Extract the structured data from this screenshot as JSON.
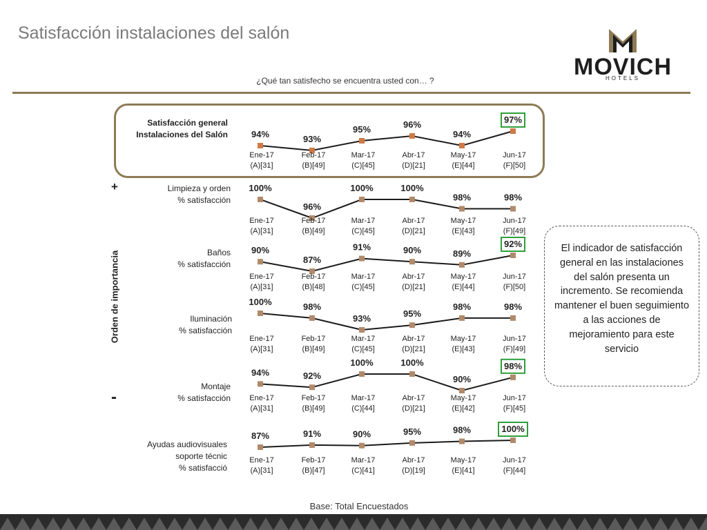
{
  "title": "Satisfacción instalaciones del salón",
  "question": "¿Qué tan satisfecho se encuentra usted con… ?",
  "logo": {
    "name": "MOVICH",
    "sub": "HOTELS",
    "colors": [
      "#8d7b55",
      "#1e1e1e"
    ]
  },
  "importance_axis": {
    "label": "Orden de importancia",
    "top": "+",
    "bottom": "-"
  },
  "callout": "El indicador de satisfacción general en las instalaciones del salón presenta un incremento. Se recomienda mantener el buen seguimiento a las acciones de mejoramiento para este servicio",
  "footer": "Base: Total Encuestados",
  "colors": {
    "line": "#1a1a1a",
    "marker_general": "#cf7a46",
    "marker": "#b08a6a",
    "highlight": "#2e9e3a",
    "frame": "#8d7b55"
  },
  "chart_data": [
    {
      "type": "line",
      "label_lines": [
        "Satisfacción general",
        "Instalaciones del Salón"
      ],
      "categories": [
        "Ene-17",
        "Feb-17",
        "Mar-17",
        "Abr-17",
        "May-17",
        "Jun-17"
      ],
      "bases": [
        "(A)[31]",
        "(B)[49]",
        "(C)[45]",
        "(D)[21]",
        "(E)[44]",
        "(F)[50]"
      ],
      "values": [
        94,
        93,
        95,
        96,
        94,
        97
      ],
      "value_labels": [
        "94%",
        "93%",
        "95%",
        "96%",
        "94%",
        "97%"
      ],
      "highlighted": [
        5
      ]
    },
    {
      "type": "line",
      "label_lines": [
        "Limpieza y orden",
        "% satisfacción"
      ],
      "categories": [
        "Ene-17",
        "Feb-17",
        "Mar-17",
        "Abr-17",
        "May-17",
        "Jun-17"
      ],
      "bases": [
        "(A)[31]",
        "(B)[49]",
        "(C)[45]",
        "(D)[21]",
        "(E)[43]",
        "(F)[49]"
      ],
      "values": [
        100,
        96,
        100,
        100,
        98,
        98
      ],
      "value_labels": [
        "100%",
        "96%",
        "100%",
        "100%",
        "98%",
        "98%"
      ],
      "highlighted": []
    },
    {
      "type": "line",
      "label_lines": [
        "Baños",
        "% satisfacción"
      ],
      "categories": [
        "Ene-17",
        "Feb-17",
        "Mar-17",
        "Abr-17",
        "May-17",
        "Jun-17"
      ],
      "bases": [
        "(A)[31]",
        "(B)[48]",
        "(C)[45]",
        "(D)[21]",
        "(E)[44]",
        "(F)[50]"
      ],
      "values": [
        90,
        87,
        91,
        90,
        89,
        92
      ],
      "value_labels": [
        "90%",
        "87%",
        "91%",
        "90%",
        "89%",
        "92%"
      ],
      "highlighted": [
        5
      ]
    },
    {
      "type": "line",
      "label_lines": [
        "Iluminación",
        "% satisfacción"
      ],
      "categories": [
        "Ene-17",
        "Feb-17",
        "Mar-17",
        "Abr-17",
        "May-17",
        "Jun-17"
      ],
      "bases": [
        "(A)[31]",
        "(B)[49]",
        "(C)[45]",
        "(D)[21]",
        "(E)[43]",
        "(F)[49]"
      ],
      "values": [
        100,
        98,
        93,
        95,
        98,
        98
      ],
      "value_labels": [
        "100%",
        "98%",
        "93%",
        "95%",
        "98%",
        "98%"
      ],
      "highlighted": []
    },
    {
      "type": "line",
      "label_lines": [
        "Montaje",
        "% satisfacción"
      ],
      "categories": [
        "Ene-17",
        "Feb-17",
        "Mar-17",
        "Abr-17",
        "May-17",
        "Jun-17"
      ],
      "bases": [
        "(A)[31]",
        "(B)[49]",
        "(C)[44]",
        "(D)[21]",
        "(E)[42]",
        "(F)[45]"
      ],
      "values": [
        94,
        92,
        100,
        100,
        90,
        98
      ],
      "value_labels": [
        "94%",
        "92%",
        "100%",
        "100%",
        "90%",
        "98%"
      ],
      "highlighted": [
        5
      ]
    },
    {
      "type": "line",
      "label_lines": [
        "Ayudas audiovisuales",
        "soporte técnic",
        "% satisfacció"
      ],
      "categories": [
        "Ene-17",
        "Feb-17",
        "Mar-17",
        "Abr-17",
        "May-17",
        "Jun-17"
      ],
      "bases": [
        "(A)[31]",
        "(B)[47]",
        "(C)[41]",
        "(D)[19]",
        "(E)[41]",
        "(F)[44]"
      ],
      "values": [
        87,
        91,
        90,
        95,
        98,
        100
      ],
      "value_labels": [
        "87%",
        "91%",
        "90%",
        "95%",
        "98%",
        "100%"
      ],
      "highlighted": [
        5
      ]
    }
  ]
}
